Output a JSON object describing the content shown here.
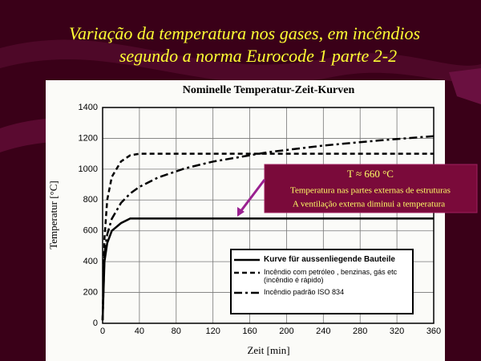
{
  "slide": {
    "title_lines": [
      "Variação da temperatura nos gases, em incêndios",
      "segundo a norma Eurocode 1 parte 2-2"
    ]
  },
  "chart_data": {
    "type": "line",
    "title": "Nominelle Temperatur-Zeit-Kurven",
    "x_label": "Zeit [min]",
    "y_label": "Temperatur [°C]",
    "xlim": [
      0,
      360
    ],
    "ylim": [
      0,
      1400
    ],
    "xticks": [
      0,
      40,
      80,
      120,
      160,
      200,
      240,
      280,
      320,
      360
    ],
    "yticks": [
      0,
      200,
      400,
      600,
      800,
      1000,
      1200,
      1400
    ],
    "grid": true,
    "series": [
      {
        "name": "Kurve für aussenliegende Bauteile",
        "color": "#000000",
        "dash": "solid",
        "x": [
          0,
          2,
          5,
          10,
          20,
          30,
          360
        ],
        "values": [
          20,
          400,
          520,
          600,
          650,
          680,
          680
        ]
      },
      {
        "name": "Incêndio com petróleo , benzinas, gás  etc (incêndio é rápido)",
        "color": "#000000",
        "dash": "dashed",
        "x": [
          0,
          2,
          5,
          10,
          20,
          30,
          40,
          360
        ],
        "values": [
          20,
          550,
          800,
          950,
          1050,
          1090,
          1100,
          1100
        ]
      },
      {
        "name": "Incêndio padrão ISO 834",
        "color": "#000000",
        "dash": "dashdot",
        "x": [
          0,
          2,
          5,
          10,
          20,
          30,
          40,
          60,
          90,
          120,
          180,
          240,
          300,
          360
        ],
        "values": [
          20,
          450,
          576,
          678,
          781,
          842,
          885,
          945,
          1006,
          1049,
          1110,
          1153,
          1186,
          1214
        ]
      }
    ],
    "annotation": {
      "lines": [
        "T ≈ 660 °C",
        "Temperatura nas partes externas de estruturas",
        "A ventilação externa diminui a temperatura"
      ]
    }
  }
}
